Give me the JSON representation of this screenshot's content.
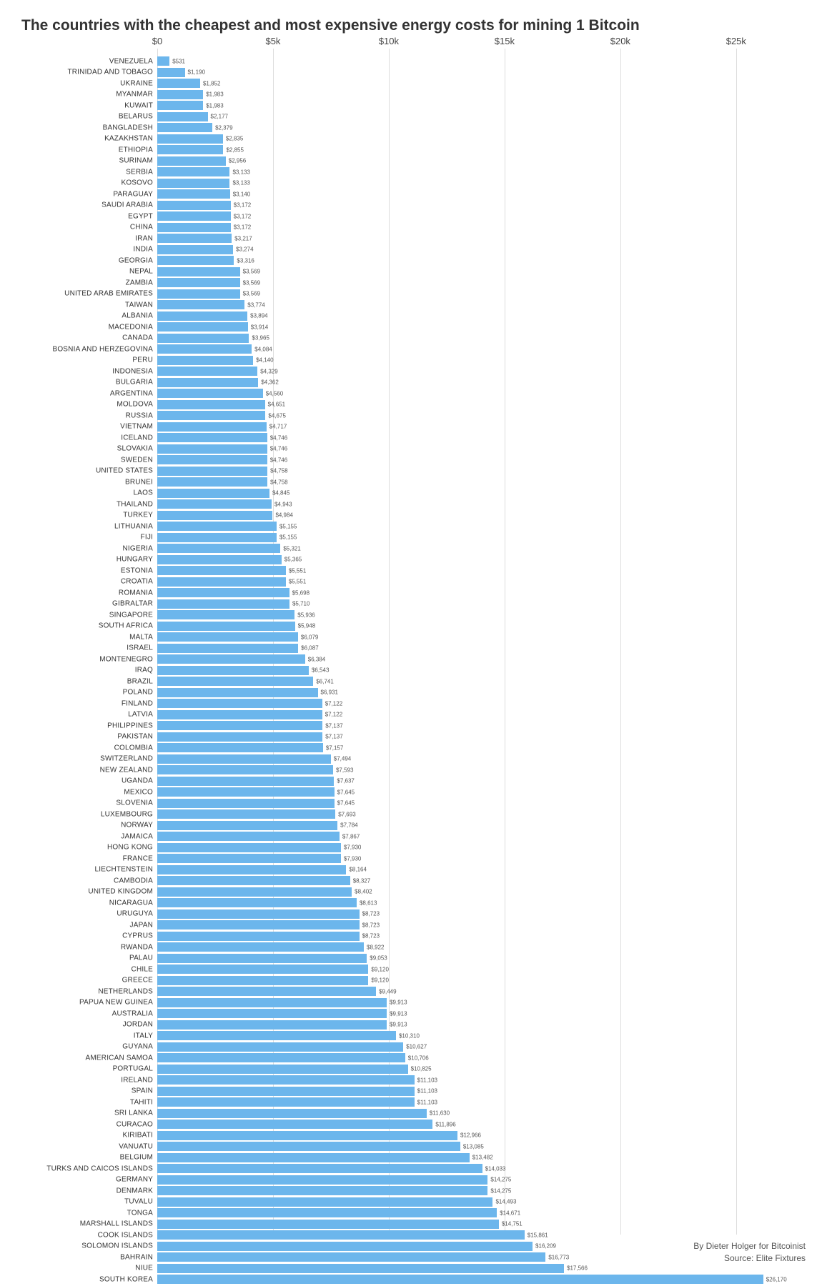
{
  "title": "The countries with the cheapest and most expensive energy costs for mining 1 Bitcoin",
  "credit_line_1": "By Dieter Holger for Bitcoinist",
  "credit_line_2": "Source: Elite Fixtures",
  "chart": {
    "type": "bar-horizontal",
    "bar_color": "#6cb6ec",
    "grid_color": "#dddddd",
    "background_color": "#ffffff",
    "label_color": "#333333",
    "value_color": "#555555",
    "title_fontsize": 21,
    "country_fontsize": 10,
    "value_fontsize": 8,
    "axis_fontsize": 13,
    "xmax": 28000,
    "ticks": [
      {
        "value": 0,
        "label": "$0"
      },
      {
        "value": 5000,
        "label": "$5k"
      },
      {
        "value": 10000,
        "label": "$10k"
      },
      {
        "value": 15000,
        "label": "$15k"
      },
      {
        "value": 20000,
        "label": "$20k"
      },
      {
        "value": 25000,
        "label": "$25k"
      }
    ],
    "rows": [
      {
        "country": "VENEZUELA",
        "value": 531,
        "label": "$531"
      },
      {
        "country": "TRINIDAD AND TOBAGO",
        "value": 1190,
        "label": "$1,190"
      },
      {
        "country": "UKRAINE",
        "value": 1852,
        "label": "$1,852"
      },
      {
        "country": "MYANMAR",
        "value": 1983,
        "label": "$1,983"
      },
      {
        "country": "KUWAIT",
        "value": 1983,
        "label": "$1,983"
      },
      {
        "country": "BELARUS",
        "value": 2177,
        "label": "$2,177"
      },
      {
        "country": "BANGLADESH",
        "value": 2379,
        "label": "$2,379"
      },
      {
        "country": "KAZAKHSTAN",
        "value": 2835,
        "label": "$2,835"
      },
      {
        "country": "ETHIOPIA",
        "value": 2855,
        "label": "$2,855"
      },
      {
        "country": "SURINAM",
        "value": 2956,
        "label": "$2,956"
      },
      {
        "country": "SERBIA",
        "value": 3133,
        "label": "$3,133"
      },
      {
        "country": "KOSOVO",
        "value": 3133,
        "label": "$3,133"
      },
      {
        "country": "PARAGUAY",
        "value": 3140,
        "label": "$3,140"
      },
      {
        "country": "SAUDI ARABIA",
        "value": 3172,
        "label": "$3,172"
      },
      {
        "country": "EGYPT",
        "value": 3172,
        "label": "$3,172"
      },
      {
        "country": "CHINA",
        "value": 3172,
        "label": "$3,172"
      },
      {
        "country": "IRAN",
        "value": 3217,
        "label": "$3,217"
      },
      {
        "country": "INDIA",
        "value": 3274,
        "label": "$3,274"
      },
      {
        "country": "GEORGIA",
        "value": 3316,
        "label": "$3,316"
      },
      {
        "country": "NEPAL",
        "value": 3569,
        "label": "$3,569"
      },
      {
        "country": "ZAMBIA",
        "value": 3569,
        "label": "$3,569"
      },
      {
        "country": "UNITED ARAB EMIRATES",
        "value": 3569,
        "label": "$3,569"
      },
      {
        "country": "TAIWAN",
        "value": 3774,
        "label": "$3,774"
      },
      {
        "country": "ALBANIA",
        "value": 3894,
        "label": "$3,894"
      },
      {
        "country": "MACEDONIA",
        "value": 3914,
        "label": "$3,914"
      },
      {
        "country": "CANADA",
        "value": 3965,
        "label": "$3,965"
      },
      {
        "country": "BOSNIA AND HERZEGOVINA",
        "value": 4084,
        "label": "$4,084"
      },
      {
        "country": "PERU",
        "value": 4140,
        "label": "$4,140"
      },
      {
        "country": "INDONESIA",
        "value": 4329,
        "label": "$4,329"
      },
      {
        "country": "BULGARIA",
        "value": 4362,
        "label": "$4,362"
      },
      {
        "country": "ARGENTINA",
        "value": 4560,
        "label": "$4,560"
      },
      {
        "country": "MOLDOVA",
        "value": 4651,
        "label": "$4,651"
      },
      {
        "country": "RUSSIA",
        "value": 4675,
        "label": "$4,675"
      },
      {
        "country": "VIETNAM",
        "value": 4717,
        "label": "$4,717"
      },
      {
        "country": "ICELAND",
        "value": 4746,
        "label": "$4,746"
      },
      {
        "country": "SLOVAKIA",
        "value": 4746,
        "label": "$4,746"
      },
      {
        "country": "SWEDEN",
        "value": 4746,
        "label": "$4,746"
      },
      {
        "country": "UNITED STATES",
        "value": 4758,
        "label": "$4,758"
      },
      {
        "country": "BRUNEI",
        "value": 4758,
        "label": "$4,758"
      },
      {
        "country": "LAOS",
        "value": 4845,
        "label": "$4,845"
      },
      {
        "country": "THAILAND",
        "value": 4943,
        "label": "$4,943"
      },
      {
        "country": "TURKEY",
        "value": 4984,
        "label": "$4,984"
      },
      {
        "country": "LITHUANIA",
        "value": 5155,
        "label": "$5,155"
      },
      {
        "country": "FIJI",
        "value": 5155,
        "label": "$5,155"
      },
      {
        "country": "NIGERIA",
        "value": 5321,
        "label": "$5,321"
      },
      {
        "country": "HUNGARY",
        "value": 5365,
        "label": "$5,365"
      },
      {
        "country": "ESTONIA",
        "value": 5551,
        "label": "$5,551"
      },
      {
        "country": "CROATIA",
        "value": 5551,
        "label": "$5,551"
      },
      {
        "country": "ROMANIA",
        "value": 5698,
        "label": "$5,698"
      },
      {
        "country": "GIBRALTAR",
        "value": 5710,
        "label": "$5,710"
      },
      {
        "country": "SINGAPORE",
        "value": 5936,
        "label": "$5,936"
      },
      {
        "country": "SOUTH AFRICA",
        "value": 5948,
        "label": "$5,948"
      },
      {
        "country": "MALTA",
        "value": 6079,
        "label": "$6,079"
      },
      {
        "country": "ISRAEL",
        "value": 6087,
        "label": "$6,087"
      },
      {
        "country": "MONTENEGRO",
        "value": 6384,
        "label": "$6,384"
      },
      {
        "country": "IRAQ",
        "value": 6543,
        "label": "$6,543"
      },
      {
        "country": "BRAZIL",
        "value": 6741,
        "label": "$6,741"
      },
      {
        "country": "POLAND",
        "value": 6931,
        "label": "$6,931"
      },
      {
        "country": "FINLAND",
        "value": 7122,
        "label": "$7,122"
      },
      {
        "country": "LATVIA",
        "value": 7122,
        "label": "$7,122"
      },
      {
        "country": "PHILIPPINES",
        "value": 7137,
        "label": "$7,137"
      },
      {
        "country": "PAKISTAN",
        "value": 7137,
        "label": "$7,137"
      },
      {
        "country": "COLOMBIA",
        "value": 7157,
        "label": "$7,157"
      },
      {
        "country": "SWITZERLAND",
        "value": 7494,
        "label": "$7,494"
      },
      {
        "country": "NEW ZEALAND",
        "value": 7593,
        "label": "$7,593"
      },
      {
        "country": "UGANDA",
        "value": 7637,
        "label": "$7,637"
      },
      {
        "country": "MEXICO",
        "value": 7645,
        "label": "$7,645"
      },
      {
        "country": "SLOVENIA",
        "value": 7645,
        "label": "$7,645"
      },
      {
        "country": "LUXEMBOURG",
        "value": 7693,
        "label": "$7,693"
      },
      {
        "country": "NORWAY",
        "value": 7784,
        "label": "$7,784"
      },
      {
        "country": "JAMAICA",
        "value": 7867,
        "label": "$7,867"
      },
      {
        "country": "HONG KONG",
        "value": 7930,
        "label": "$7,930"
      },
      {
        "country": "FRANCE",
        "value": 7930,
        "label": "$7,930"
      },
      {
        "country": "LIECHTENSTEIN",
        "value": 8164,
        "label": "$8,164"
      },
      {
        "country": "CAMBODIA",
        "value": 8327,
        "label": "$8,327"
      },
      {
        "country": "UNITED KINGDOM",
        "value": 8402,
        "label": "$8,402"
      },
      {
        "country": "NICARAGUA",
        "value": 8613,
        "label": "$8,613"
      },
      {
        "country": "URUGUYA",
        "value": 8723,
        "label": "$8,723"
      },
      {
        "country": "JAPAN",
        "value": 8723,
        "label": "$8,723"
      },
      {
        "country": "CYPRUS",
        "value": 8723,
        "label": "$8,723"
      },
      {
        "country": "RWANDA",
        "value": 8922,
        "label": "$8,922"
      },
      {
        "country": "PALAU",
        "value": 9053,
        "label": "$9,053"
      },
      {
        "country": "CHILE",
        "value": 9120,
        "label": "$9,120"
      },
      {
        "country": "GREECE",
        "value": 9120,
        "label": "$9,120"
      },
      {
        "country": "NETHERLANDS",
        "value": 9449,
        "label": "$9,449"
      },
      {
        "country": "PAPUA NEW GUINEA",
        "value": 9913,
        "label": "$9,913"
      },
      {
        "country": "AUSTRALIA",
        "value": 9913,
        "label": "$9,913"
      },
      {
        "country": "JORDAN",
        "value": 9913,
        "label": "$9,913"
      },
      {
        "country": "ITALY",
        "value": 10310,
        "label": "$10,310"
      },
      {
        "country": "GUYANA",
        "value": 10627,
        "label": "$10,627"
      },
      {
        "country": "AMERICAN SAMOA",
        "value": 10706,
        "label": "$10,706"
      },
      {
        "country": "PORTUGAL",
        "value": 10825,
        "label": "$10,825"
      },
      {
        "country": "IRELAND",
        "value": 11103,
        "label": "$11,103"
      },
      {
        "country": "SPAIN",
        "value": 11103,
        "label": "$11,103"
      },
      {
        "country": "TAHITI",
        "value": 11103,
        "label": "$11,103"
      },
      {
        "country": "SRI LANKA",
        "value": 11630,
        "label": "$11,630"
      },
      {
        "country": "CURACAO",
        "value": 11896,
        "label": "$11,896"
      },
      {
        "country": "KIRIBATI",
        "value": 12966,
        "label": "$12,966"
      },
      {
        "country": "VANUATU",
        "value": 13085,
        "label": "$13,085"
      },
      {
        "country": "BELGIUM",
        "value": 13482,
        "label": "$13,482"
      },
      {
        "country": "TURKS AND CAICOS ISLANDS",
        "value": 14033,
        "label": "$14,033"
      },
      {
        "country": "GERMANY",
        "value": 14275,
        "label": "$14,275"
      },
      {
        "country": "DENMARK",
        "value": 14275,
        "label": "$14,275"
      },
      {
        "country": "TUVALU",
        "value": 14493,
        "label": "$14,493"
      },
      {
        "country": "TONGA",
        "value": 14671,
        "label": "$14,671"
      },
      {
        "country": "MARSHALL ISLANDS",
        "value": 14751,
        "label": "$14,751"
      },
      {
        "country": "COOK ISLANDS",
        "value": 15861,
        "label": "$15,861"
      },
      {
        "country": "SOLOMON ISLANDS",
        "value": 16209,
        "label": "$16,209"
      },
      {
        "country": "BAHRAIN",
        "value": 16773,
        "label": "$16,773"
      },
      {
        "country": "NIUE",
        "value": 17566,
        "label": "$17,566"
      },
      {
        "country": "SOUTH KOREA",
        "value": 26170,
        "label": "$26,170"
      }
    ]
  }
}
